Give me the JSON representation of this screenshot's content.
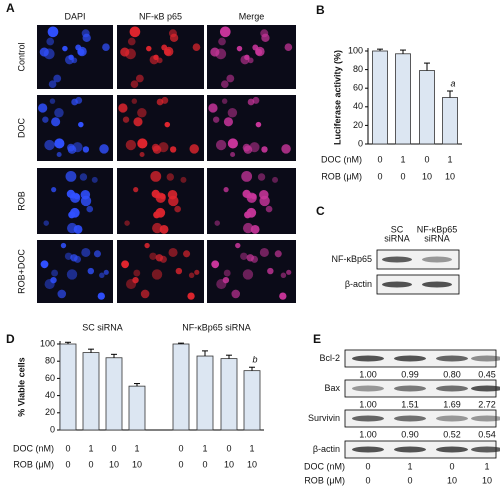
{
  "panel_labels": [
    "A",
    "B",
    "C",
    "D",
    "E"
  ],
  "panel_a": {
    "columns": [
      "DAPI",
      "NF-κB p65",
      "Merge"
    ],
    "rows": [
      "Control",
      "DOC",
      "ROB",
      "ROB+DOC"
    ]
  },
  "chart_data": [
    {
      "type": "bar",
      "ylabel": "Luciferase activity (%)",
      "ylim": [
        0,
        100
      ],
      "yticks": [
        0,
        20,
        40,
        60,
        80,
        100
      ],
      "series": [
        {
          "color": "#dce6f2",
          "values": [
            100,
            97,
            79,
            50
          ],
          "errors": [
            2,
            4,
            8,
            7
          ],
          "notes": [
            null,
            null,
            null,
            "a"
          ]
        }
      ],
      "conditions": [
        {
          "label": "DOC (nM)",
          "values": [
            0,
            1,
            0,
            1
          ]
        },
        {
          "label": "ROB (μM)",
          "values": [
            0,
            0,
            10,
            10
          ]
        }
      ]
    },
    {
      "type": "bar",
      "ylabel": "% Viable cells",
      "ylim": [
        0,
        100
      ],
      "yticks": [
        0,
        20,
        40,
        60,
        80,
        100
      ],
      "series": [
        {
          "name": "SC siRNA",
          "color": "#dce6f2",
          "values": [
            100,
            90,
            84,
            51
          ],
          "errors": [
            2,
            4,
            4,
            3
          ],
          "notes": [
            null,
            null,
            null,
            null
          ]
        },
        {
          "name": "NF-κBp65 siRNA",
          "color": "#dce6f2",
          "values": [
            100,
            86,
            83,
            69
          ],
          "errors": [
            1,
            6,
            4,
            4
          ],
          "notes": [
            null,
            null,
            null,
            "b"
          ]
        }
      ],
      "conditions": [
        {
          "label": "DOC (nM)",
          "values": [
            0,
            1,
            0,
            1,
            0,
            1,
            0,
            1
          ]
        },
        {
          "label": "ROB (μM)",
          "values": [
            0,
            0,
            10,
            10,
            0,
            0,
            10,
            10
          ]
        }
      ]
    }
  ],
  "panel_c": {
    "lanes": [
      [
        "SC",
        "siRNA"
      ],
      [
        "NF-κBp65",
        "siRNA"
      ]
    ],
    "rows": [
      "NF-κBp65",
      "β-actin"
    ]
  },
  "panel_e": {
    "rows": [
      {
        "label": "Bcl-2",
        "ratios": [
          "1.00",
          "0.99",
          "0.80",
          "0.45"
        ]
      },
      {
        "label": "Bax",
        "ratios": [
          "1.00",
          "1.51",
          "1.69",
          "2.72"
        ]
      },
      {
        "label": "Survivin",
        "ratios": [
          "1.00",
          "0.90",
          "0.52",
          "0.54"
        ]
      },
      {
        "label": "β-actin"
      }
    ],
    "conditions": [
      {
        "label": "DOC (nM)",
        "values": [
          0,
          1,
          0,
          1
        ]
      },
      {
        "label": "ROB (μM)",
        "values": [
          0,
          0,
          10,
          10
        ]
      }
    ]
  }
}
